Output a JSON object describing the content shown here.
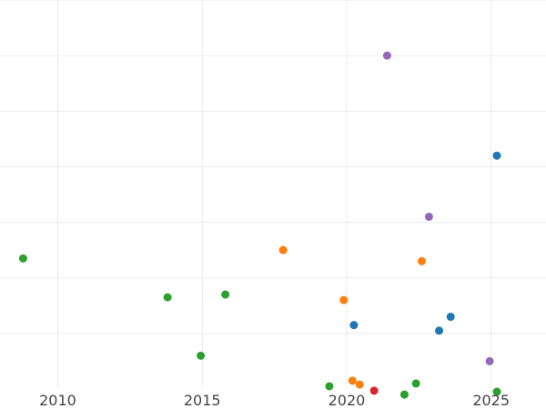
{
  "chart_data": {
    "type": "scatter",
    "title": "",
    "xlabel": "",
    "ylabel": "",
    "grid": true,
    "legend": "none",
    "xlim": [
      2008,
      2026.9
    ],
    "ylim": [
      0,
      7
    ],
    "x_ticks": [
      2010,
      2015,
      2020,
      2025
    ],
    "x_tick_labels": [
      "2010",
      "2015",
      "2020",
      "2025"
    ],
    "y_gridlines": [
      1,
      2,
      3,
      4,
      5,
      6,
      7
    ],
    "series": [
      {
        "color": "#1f77b4",
        "points": [
          {
            "x": 2020.25,
            "y": 1.15
          },
          {
            "x": 2023.2,
            "y": 1.05
          },
          {
            "x": 2023.6,
            "y": 1.3
          },
          {
            "x": 2025.2,
            "y": 4.2
          }
        ]
      },
      {
        "color": "#ff7f0e",
        "points": [
          {
            "x": 2017.8,
            "y": 2.5
          },
          {
            "x": 2019.9,
            "y": 1.6
          },
          {
            "x": 2020.2,
            "y": 0.15
          },
          {
            "x": 2020.45,
            "y": 0.08
          },
          {
            "x": 2022.6,
            "y": 2.3
          }
        ]
      },
      {
        "color": "#2ca02c",
        "points": [
          {
            "x": 2008.8,
            "y": 2.35
          },
          {
            "x": 2013.8,
            "y": 1.65
          },
          {
            "x": 2014.95,
            "y": 0.6
          },
          {
            "x": 2015.8,
            "y": 1.7
          },
          {
            "x": 2019.4,
            "y": 0.05
          },
          {
            "x": 2022.0,
            "y": -0.1
          },
          {
            "x": 2022.4,
            "y": 0.1
          },
          {
            "x": 2025.2,
            "y": -0.05
          }
        ]
      },
      {
        "color": "#d62728",
        "points": [
          {
            "x": 2020.95,
            "y": -0.03
          }
        ]
      },
      {
        "color": "#9467bd",
        "points": [
          {
            "x": 2021.4,
            "y": 6.0
          },
          {
            "x": 2022.85,
            "y": 3.1
          },
          {
            "x": 2024.95,
            "y": 0.5
          }
        ]
      }
    ]
  }
}
